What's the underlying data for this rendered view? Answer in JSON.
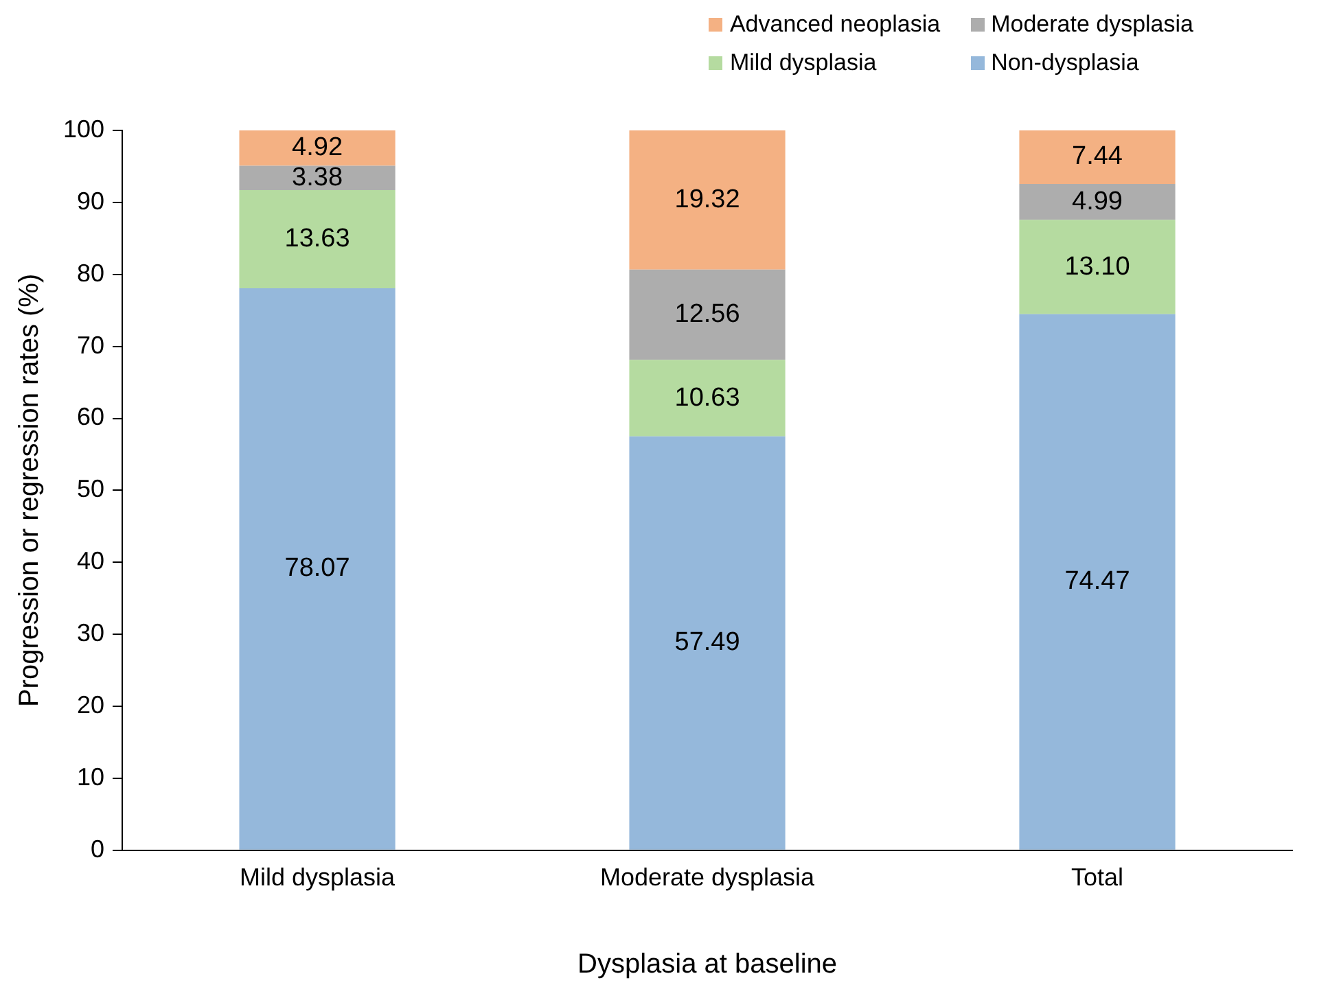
{
  "chart_data": {
    "type": "bar",
    "stacked": true,
    "xlabel": "Dysplasia at baseline",
    "ylabel": "Progression or regression rates (%)",
    "categories": [
      "Mild dysplasia",
      "Moderate dysplasia",
      "Total"
    ],
    "series": [
      {
        "name": "Non-dysplasia",
        "color": "#95b8db",
        "values": [
          78.07,
          57.49,
          74.47
        ],
        "value_labels": [
          "78.07",
          "57.49",
          "74.47"
        ]
      },
      {
        "name": "Mild dysplasia",
        "color": "#b5dba0",
        "values": [
          13.63,
          10.63,
          13.1
        ],
        "value_labels": [
          "13.63",
          "10.63",
          "13.10"
        ]
      },
      {
        "name": "Moderate dysplasia",
        "color": "#adadad",
        "values": [
          3.38,
          12.56,
          4.99
        ],
        "value_labels": [
          "3.38",
          "12.56",
          "4.99"
        ]
      },
      {
        "name": "Advanced neoplasia",
        "color": "#f4b183",
        "values": [
          4.92,
          19.32,
          7.44
        ],
        "value_labels": [
          "4.92",
          "19.32",
          "7.44"
        ]
      }
    ],
    "ylim": [
      0,
      100
    ],
    "yticks": [
      0,
      10,
      20,
      30,
      40,
      50,
      60,
      70,
      80,
      90,
      100
    ],
    "grid": false,
    "legend": "top right"
  }
}
